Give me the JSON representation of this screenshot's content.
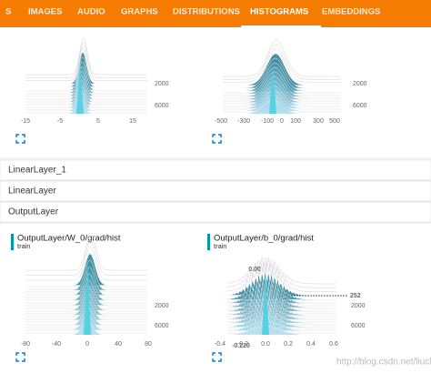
{
  "tabs": [
    "S",
    "IMAGES",
    "AUDIO",
    "GRAPHS",
    "DISTRIBUTIONS",
    "HISTOGRAMS",
    "EMBEDDINGS"
  ],
  "active_tab": 5,
  "top_panels": [
    {
      "x_ticks": [
        "-15",
        "-5",
        "5",
        "15"
      ],
      "y_ticks": [
        "2000",
        "6000"
      ]
    },
    {
      "x_ticks": [
        "-500",
        "-300",
        "-100",
        "0",
        "100",
        "300",
        "500"
      ],
      "y_ticks": [
        "2000",
        "6000"
      ]
    }
  ],
  "groups": [
    "LinearLayer_1",
    "LinearLayer",
    "OutputLayer"
  ],
  "bottom_panels": [
    {
      "title": "OutputLayer/W_0/grad/hist",
      "run": "train",
      "x_ticks": [
        "-80",
        "-40",
        "0",
        "40",
        "80"
      ],
      "y_ticks": [
        "2000",
        "6000"
      ]
    },
    {
      "title": "OutputLayer/b_0/grad/hist",
      "run": "train",
      "x_ticks": [
        "-0.4",
        "-0.2",
        "0.0",
        "0.2",
        "0.4",
        "0.6"
      ],
      "y_ticks": [
        "2000",
        "6000"
      ],
      "annotations": [
        "0.00",
        "252",
        "-0.220"
      ]
    }
  ],
  "watermark": "http://blog.csdn.net/liuchonge"
}
